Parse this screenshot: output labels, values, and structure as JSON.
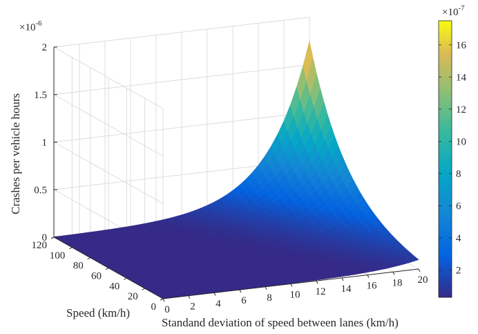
{
  "chart_data": {
    "type": "surface",
    "zlabel": "Crashes per vehicle hours",
    "xlabel": "Standand deviation of speed between lanes (km/h)",
    "ylabel": "Speed (km/h)",
    "z_exponent_label": "×10",
    "z_exponent_power": "-6",
    "x_ticks": [
      "0",
      "2",
      "4",
      "6",
      "8",
      "10",
      "12",
      "14",
      "16",
      "18",
      "20"
    ],
    "y_ticks": [
      "0",
      "20",
      "40",
      "60",
      "80",
      "100",
      "120"
    ],
    "z_ticks": [
      "0",
      "0.5",
      "1",
      "1.5",
      "2"
    ],
    "xlim": [
      0,
      20
    ],
    "ylim": [
      0,
      120
    ],
    "zlim": [
      0,
      2e-06
    ],
    "colormap": "parula",
    "grid": true,
    "surface": {
      "description_model": "z increases steeply with both std. deviation and speed",
      "samples": [
        {
          "x": 0,
          "y": 0,
          "z": 0
        },
        {
          "x": 20,
          "y": 0,
          "z": 0
        },
        {
          "x": 0,
          "y": 120,
          "z": 2e-08
        },
        {
          "x": 10,
          "y": 120,
          "z": 1.2e-07
        },
        {
          "x": 15,
          "y": 120,
          "z": 4.5e-07
        },
        {
          "x": 20,
          "y": 120,
          "z": 1.75e-06
        },
        {
          "x": 20,
          "y": 60,
          "z": 4.5e-07
        }
      ]
    },
    "colorbar": {
      "exponent_label": "×10",
      "exponent_power": "-7",
      "ticks": [
        "2",
        "4",
        "6",
        "8",
        "10",
        "12",
        "14",
        "16"
      ],
      "range": [
        0.3,
        17.5
      ]
    }
  }
}
